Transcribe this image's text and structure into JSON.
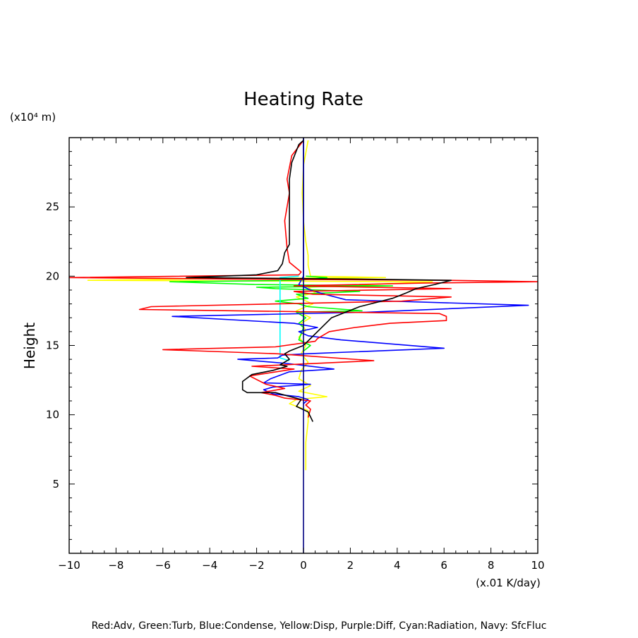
{
  "chart_data": {
    "type": "line",
    "title": "Heating Rate",
    "xlabel": "(x.01 K/day)",
    "ylabel": "Height",
    "yunit": "(x10⁴ m)",
    "xlim": [
      -10,
      10
    ],
    "ylim": [
      0,
      30
    ],
    "xticks": [
      -10,
      -8,
      -6,
      -4,
      -2,
      0,
      2,
      4,
      6,
      8,
      10
    ],
    "yticks": [
      5,
      10,
      15,
      20,
      25
    ],
    "grid": false,
    "legend_text": "Red:Adv, Green:Turb, Blue:Condense, Yellow:Disp, Purple:Diff, Cyan:Radiation, Navy: SfcFluc",
    "series": [
      {
        "color": "#ffff00",
        "points": [
          [
            0.1,
            6
          ],
          [
            0.1,
            8
          ],
          [
            0.2,
            9.5
          ],
          [
            0.2,
            10.3
          ],
          [
            -0.6,
            10.8
          ],
          [
            -0.3,
            11.1
          ],
          [
            1,
            11.3
          ],
          [
            -0.2,
            11.7
          ],
          [
            0.3,
            12.1
          ],
          [
            -0.2,
            12.6
          ],
          [
            -0.1,
            13.2
          ],
          [
            0.2,
            13.8
          ],
          [
            -0.1,
            14.4
          ],
          [
            0.1,
            15
          ],
          [
            -0.2,
            15.6
          ],
          [
            0.1,
            16.1
          ],
          [
            -0.1,
            16.6
          ],
          [
            0.3,
            17
          ],
          [
            -0.3,
            17.5
          ],
          [
            0.4,
            18
          ],
          [
            -0.3,
            18.5
          ],
          [
            0.5,
            18.8
          ],
          [
            0.2,
            19.2
          ],
          [
            5.5,
            19.6
          ],
          [
            -9.2,
            19.7
          ],
          [
            -5,
            19.8
          ],
          [
            3.5,
            19.9
          ],
          [
            0.3,
            20
          ],
          [
            0.2,
            20.8
          ],
          [
            0.2,
            21.5
          ],
          [
            0.1,
            22.5
          ],
          [
            0,
            24
          ],
          [
            -0.05,
            26
          ],
          [
            0,
            28
          ],
          [
            0.2,
            29.8
          ]
        ]
      },
      {
        "color": "#00ff00",
        "points": [
          [
            0,
            14.6
          ],
          [
            0.3,
            15
          ],
          [
            -0.2,
            15.4
          ],
          [
            0,
            16.3
          ],
          [
            -0.2,
            16.6
          ],
          [
            0.1,
            17
          ],
          [
            -0.3,
            17.4
          ],
          [
            2.5,
            17.5
          ],
          [
            0.2,
            17.8
          ],
          [
            -0.2,
            18
          ],
          [
            -1.2,
            18.2
          ],
          [
            0.2,
            18.4
          ],
          [
            -0.3,
            18.7
          ],
          [
            2.4,
            18.9
          ],
          [
            -1.2,
            19.1
          ],
          [
            -2,
            19.2
          ],
          [
            3.8,
            19.3
          ],
          [
            -2.1,
            19.4
          ],
          [
            -5.7,
            19.6
          ],
          [
            -0.2,
            19.7
          ],
          [
            1,
            19.9
          ],
          [
            0.1,
            20
          ]
        ]
      },
      {
        "color": "#00ffff",
        "points": [
          [
            -0.6,
            13.9
          ],
          [
            -1,
            14.1
          ],
          [
            -1,
            14.8
          ],
          [
            -1,
            18
          ],
          [
            -1,
            19.9
          ],
          [
            -0.2,
            20
          ]
        ]
      },
      {
        "color": "#0000ff",
        "points": [
          [
            0,
            10.8
          ],
          [
            0.2,
            11.1
          ],
          [
            -0.2,
            11.3
          ],
          [
            -1.3,
            11.5
          ],
          [
            -1.7,
            11.8
          ],
          [
            -1.3,
            12
          ],
          [
            0.3,
            12.2
          ],
          [
            -1.7,
            12.3
          ],
          [
            -1.4,
            12.6
          ],
          [
            -0.6,
            13.1
          ],
          [
            1.3,
            13.3
          ],
          [
            -0.7,
            13.7
          ],
          [
            -2.8,
            14
          ],
          [
            -1.1,
            14.1
          ],
          [
            -0.9,
            14.3
          ],
          [
            0.1,
            14.4
          ],
          [
            6,
            14.8
          ],
          [
            1.6,
            15.4
          ],
          [
            0.2,
            15.7
          ],
          [
            -0.2,
            16
          ],
          [
            0.6,
            16.3
          ],
          [
            -0.4,
            16.6
          ],
          [
            -5.6,
            17.1
          ],
          [
            2.7,
            17.4
          ],
          [
            9.6,
            17.9
          ],
          [
            1.8,
            18.3
          ],
          [
            0.9,
            18.7
          ],
          [
            0.3,
            19
          ],
          [
            -0.2,
            19.4
          ],
          [
            0,
            20
          ],
          [
            0,
            22
          ],
          [
            0,
            30
          ]
        ]
      },
      {
        "color": "#ff0000",
        "points": [
          [
            0.2,
            9.8
          ],
          [
            0.3,
            10.4
          ],
          [
            0.1,
            10.7
          ],
          [
            0.3,
            11
          ],
          [
            -0.8,
            11.2
          ],
          [
            -1.2,
            11.4
          ],
          [
            -1.8,
            11.6
          ],
          [
            -0.8,
            11.9
          ],
          [
            -1.6,
            12.2
          ],
          [
            -2.3,
            12.8
          ],
          [
            -0.4,
            13.3
          ],
          [
            -2.2,
            13.5
          ],
          [
            3,
            13.9
          ],
          [
            -1.1,
            14.4
          ],
          [
            -6,
            14.7
          ],
          [
            -1.2,
            14.9
          ],
          [
            0.5,
            15.3
          ],
          [
            0.6,
            15.5
          ],
          [
            1.1,
            16
          ],
          [
            2.2,
            16.3
          ],
          [
            3.7,
            16.6
          ],
          [
            6.1,
            16.8
          ],
          [
            6.1,
            17.1
          ],
          [
            5.8,
            17.3
          ],
          [
            -7,
            17.6
          ],
          [
            -6.5,
            17.8
          ],
          [
            4.2,
            18.2
          ],
          [
            6.3,
            18.5
          ],
          [
            0.4,
            18.7
          ],
          [
            -0.4,
            18.9
          ],
          [
            6.3,
            19.1
          ],
          [
            -0.4,
            19.3
          ],
          [
            5.1,
            19.5
          ],
          [
            10,
            19.6
          ],
          [
            6.2,
            19.7
          ],
          [
            -3.4,
            19.8
          ],
          [
            -10,
            19.9
          ],
          [
            -0.2,
            20.1
          ],
          [
            -0.1,
            20.3
          ],
          [
            -0.6,
            21
          ],
          [
            -0.7,
            22
          ],
          [
            -0.8,
            24
          ],
          [
            -0.6,
            26
          ],
          [
            -0.7,
            27
          ],
          [
            -0.5,
            28.7
          ],
          [
            0,
            29.8
          ]
        ]
      },
      {
        "color": "#000000",
        "points": [
          [
            0.4,
            9.5
          ],
          [
            0.2,
            10.2
          ],
          [
            -0.3,
            10.6
          ],
          [
            -0.1,
            11.1
          ],
          [
            -1.2,
            11.6
          ],
          [
            -2.4,
            11.6
          ],
          [
            -2.6,
            11.8
          ],
          [
            -2.6,
            12.4
          ],
          [
            -2.2,
            12.9
          ],
          [
            -1.3,
            13.2
          ],
          [
            -0.7,
            13.5
          ],
          [
            -1,
            13.6
          ],
          [
            -0.6,
            14
          ],
          [
            -0.8,
            14.4
          ],
          [
            -0.6,
            14.6
          ],
          [
            0,
            15
          ],
          [
            1.2,
            17
          ],
          [
            2.4,
            17.8
          ],
          [
            3.8,
            18.4
          ],
          [
            4.4,
            18.8
          ],
          [
            4.8,
            19.1
          ],
          [
            5.6,
            19.4
          ],
          [
            6.3,
            19.7
          ],
          [
            2,
            19.8
          ],
          [
            -5,
            19.9
          ],
          [
            -2,
            20.1
          ],
          [
            -1.1,
            20.4
          ],
          [
            -0.9,
            20.9
          ],
          [
            -0.8,
            21.7
          ],
          [
            -0.6,
            22.3
          ],
          [
            -0.6,
            25
          ],
          [
            -0.6,
            27
          ],
          [
            -0.5,
            28.2
          ],
          [
            -0.2,
            29.5
          ],
          [
            0,
            29.8
          ]
        ]
      },
      {
        "color": "#000080",
        "points": [
          [
            0,
            0
          ],
          [
            0,
            10
          ],
          [
            0,
            20
          ],
          [
            0,
            30
          ]
        ]
      }
    ]
  }
}
